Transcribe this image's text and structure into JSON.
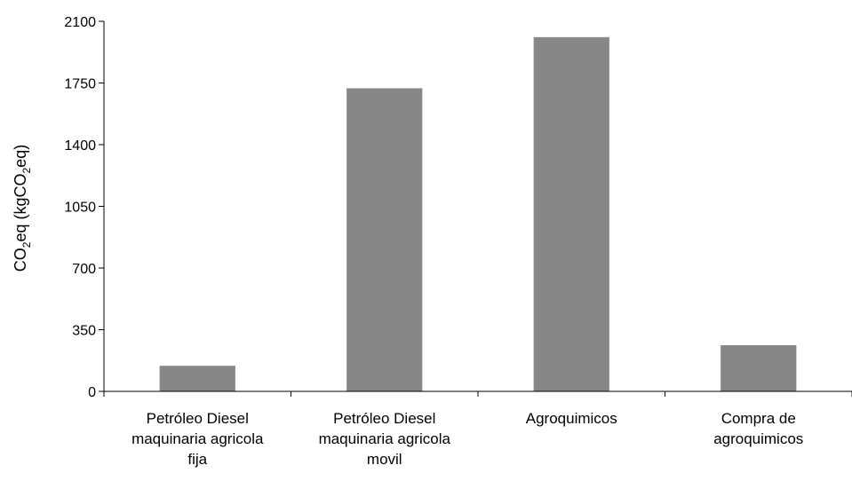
{
  "chart_data": {
    "type": "bar",
    "categories": [
      [
        "Petróleo Diesel",
        "maquinaria agricola",
        "fija"
      ],
      [
        "Petróleo Diesel",
        "maquinaria agricola",
        "movil"
      ],
      [
        "Agroquimicos"
      ],
      [
        "Compra de",
        "agroquimicos"
      ]
    ],
    "values": [
      145,
      1720,
      2010,
      262
    ],
    "ylabel": {
      "parts": [
        {
          "text": "CO",
          "sub": false
        },
        {
          "text": "2",
          "sub": true
        },
        {
          "text": "eq (kgCO",
          "sub": false
        },
        {
          "text": "2",
          "sub": true
        },
        {
          "text": "eq)",
          "sub": false
        }
      ]
    },
    "yticks": [
      0,
      350,
      700,
      1050,
      1400,
      1750,
      2100
    ],
    "ylim": [
      0,
      2100
    ],
    "grid": false,
    "legend": "none",
    "bar_color": "#878787",
    "axis_color": "#000000"
  }
}
